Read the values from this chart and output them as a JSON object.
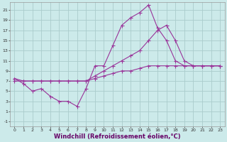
{
  "background_color": "#cceaea",
  "grid_color": "#aacccc",
  "line_color": "#993399",
  "xlim": [
    -0.5,
    23.5
  ],
  "ylim": [
    -2,
    22.5
  ],
  "xticks": [
    0,
    1,
    2,
    3,
    4,
    5,
    6,
    7,
    8,
    9,
    10,
    11,
    12,
    13,
    14,
    15,
    16,
    17,
    18,
    19,
    20,
    21,
    22,
    23
  ],
  "yticks": [
    -1,
    1,
    3,
    5,
    7,
    9,
    11,
    13,
    15,
    17,
    19,
    21
  ],
  "xlabel": "Windchill (Refroidissement éolien,°C)",
  "series": [
    {
      "x": [
        0,
        1,
        2,
        3,
        4,
        5,
        6,
        7,
        8,
        9,
        10,
        11,
        12,
        13,
        14,
        15,
        16,
        17,
        18,
        19,
        20,
        21,
        22,
        23
      ],
      "y": [
        7.5,
        6.5,
        5,
        5.5,
        4,
        3,
        3,
        2,
        5.5,
        10,
        10,
        14,
        18,
        19.5,
        20.5,
        22,
        17.5,
        15,
        11,
        10,
        10,
        10,
        10,
        10
      ]
    },
    {
      "x": [
        0,
        1,
        2,
        3,
        4,
        5,
        6,
        7,
        8,
        9,
        10,
        11,
        12,
        13,
        14,
        15,
        16,
        17,
        18,
        19,
        20,
        21,
        22,
        23
      ],
      "y": [
        7.5,
        7,
        7,
        7,
        7,
        7,
        7,
        7,
        7,
        8,
        9,
        10,
        11,
        12,
        13,
        15,
        17,
        18,
        15,
        11,
        10,
        10,
        10,
        10
      ]
    },
    {
      "x": [
        0,
        1,
        2,
        3,
        4,
        5,
        6,
        7,
        8,
        9,
        10,
        11,
        12,
        13,
        14,
        15,
        16,
        17,
        18,
        19,
        20,
        21,
        22,
        23
      ],
      "y": [
        7,
        7,
        7,
        7,
        7,
        7,
        7,
        7,
        7,
        7.5,
        8,
        8.5,
        9,
        9,
        9.5,
        10,
        10,
        10,
        10,
        10,
        10,
        10,
        10,
        10
      ]
    }
  ],
  "tick_fontsize": 4.5,
  "xlabel_fontsize": 6.0,
  "marker_size": 2.0,
  "linewidth": 0.8
}
